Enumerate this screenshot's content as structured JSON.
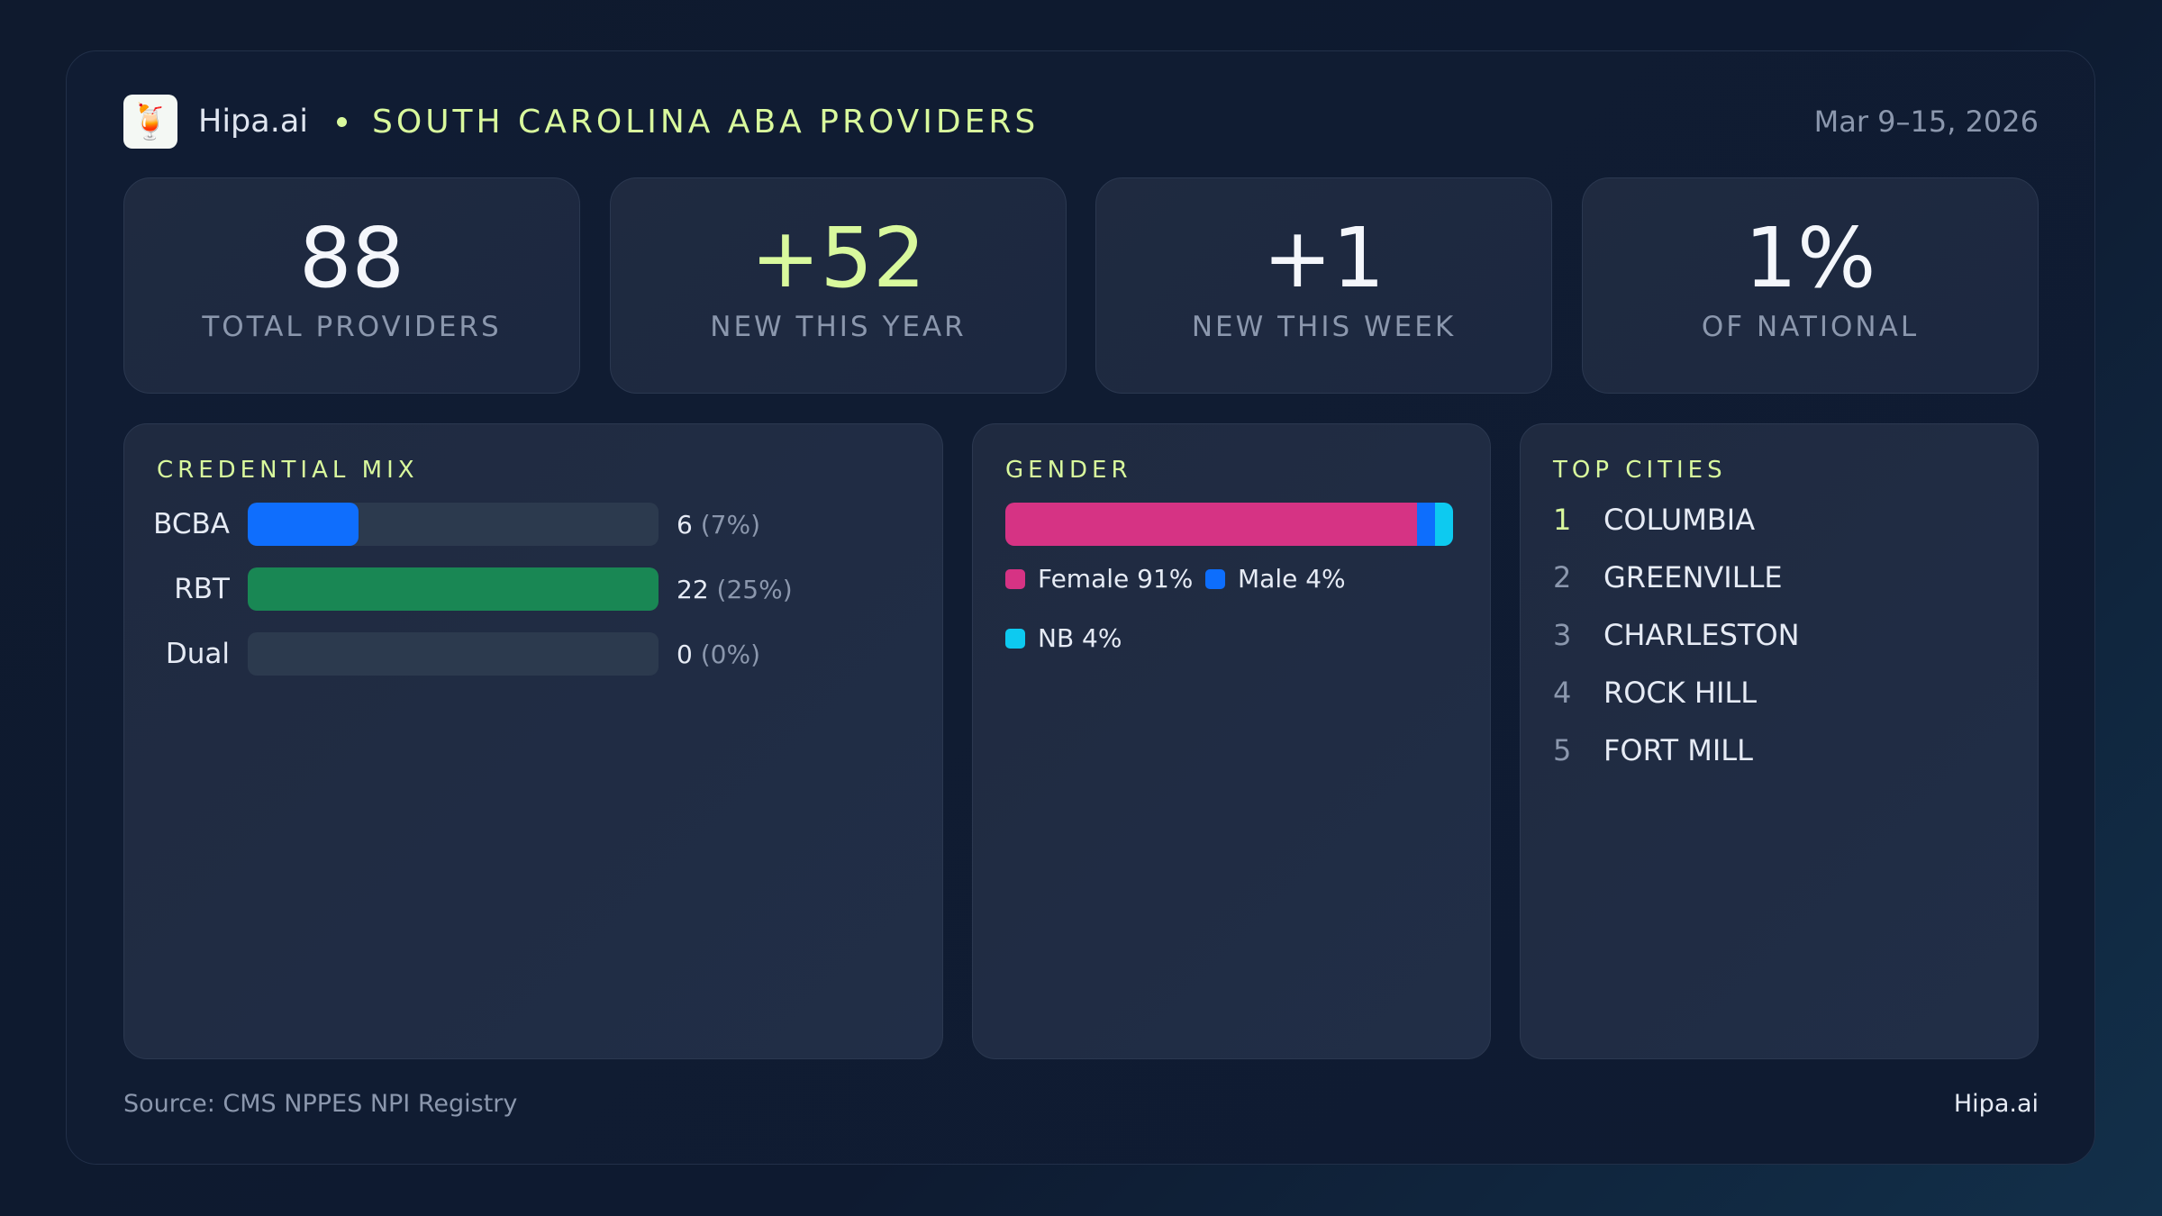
{
  "header": {
    "brand": "Hipa.ai",
    "title": "SOUTH CAROLINA ABA PROVIDERS",
    "date_range": "Mar 9–15, 2026",
    "logo_icon": "mojito-glass-icon"
  },
  "stats": [
    {
      "value": "88",
      "label": "TOTAL PROVIDERS"
    },
    {
      "value": "+52",
      "label": "NEW THIS YEAR"
    },
    {
      "value": "+1",
      "label": "NEW THIS WEEK"
    },
    {
      "value": "1%",
      "label": "OF NATIONAL"
    }
  ],
  "credential_mix": {
    "title": "CREDENTIAL MIX",
    "rows": [
      {
        "label": "BCBA",
        "count": "6",
        "pct": "(7%)",
        "fill_fraction": 0.27,
        "color": "#0f6efd"
      },
      {
        "label": "RBT",
        "count": "22",
        "pct": "(25%)",
        "fill_fraction": 1.0,
        "color": "#198754"
      },
      {
        "label": "Dual",
        "count": "0",
        "pct": "(0%)",
        "fill_fraction": 0,
        "color": "#6c757d"
      }
    ]
  },
  "gender": {
    "title": "GENDER",
    "segments": [
      {
        "label": "Female 91%",
        "share": 91,
        "color": "#d63384"
      },
      {
        "label": "Male 4%",
        "share": 4,
        "color": "#0d6efd"
      },
      {
        "label": "NB 4%",
        "share": 4,
        "color": "#0dcaf0"
      }
    ]
  },
  "top_cities": {
    "title": "TOP CITIES",
    "items": [
      {
        "rank": "1",
        "name": "COLUMBIA"
      },
      {
        "rank": "2",
        "name": "GREENVILLE"
      },
      {
        "rank": "3",
        "name": "CHARLESTON"
      },
      {
        "rank": "4",
        "name": "ROCK HILL"
      },
      {
        "rank": "5",
        "name": "FORT MILL"
      }
    ]
  },
  "footer": {
    "source": "Source: CMS NPPES NPI Registry",
    "brand": "Hipa.ai"
  }
}
